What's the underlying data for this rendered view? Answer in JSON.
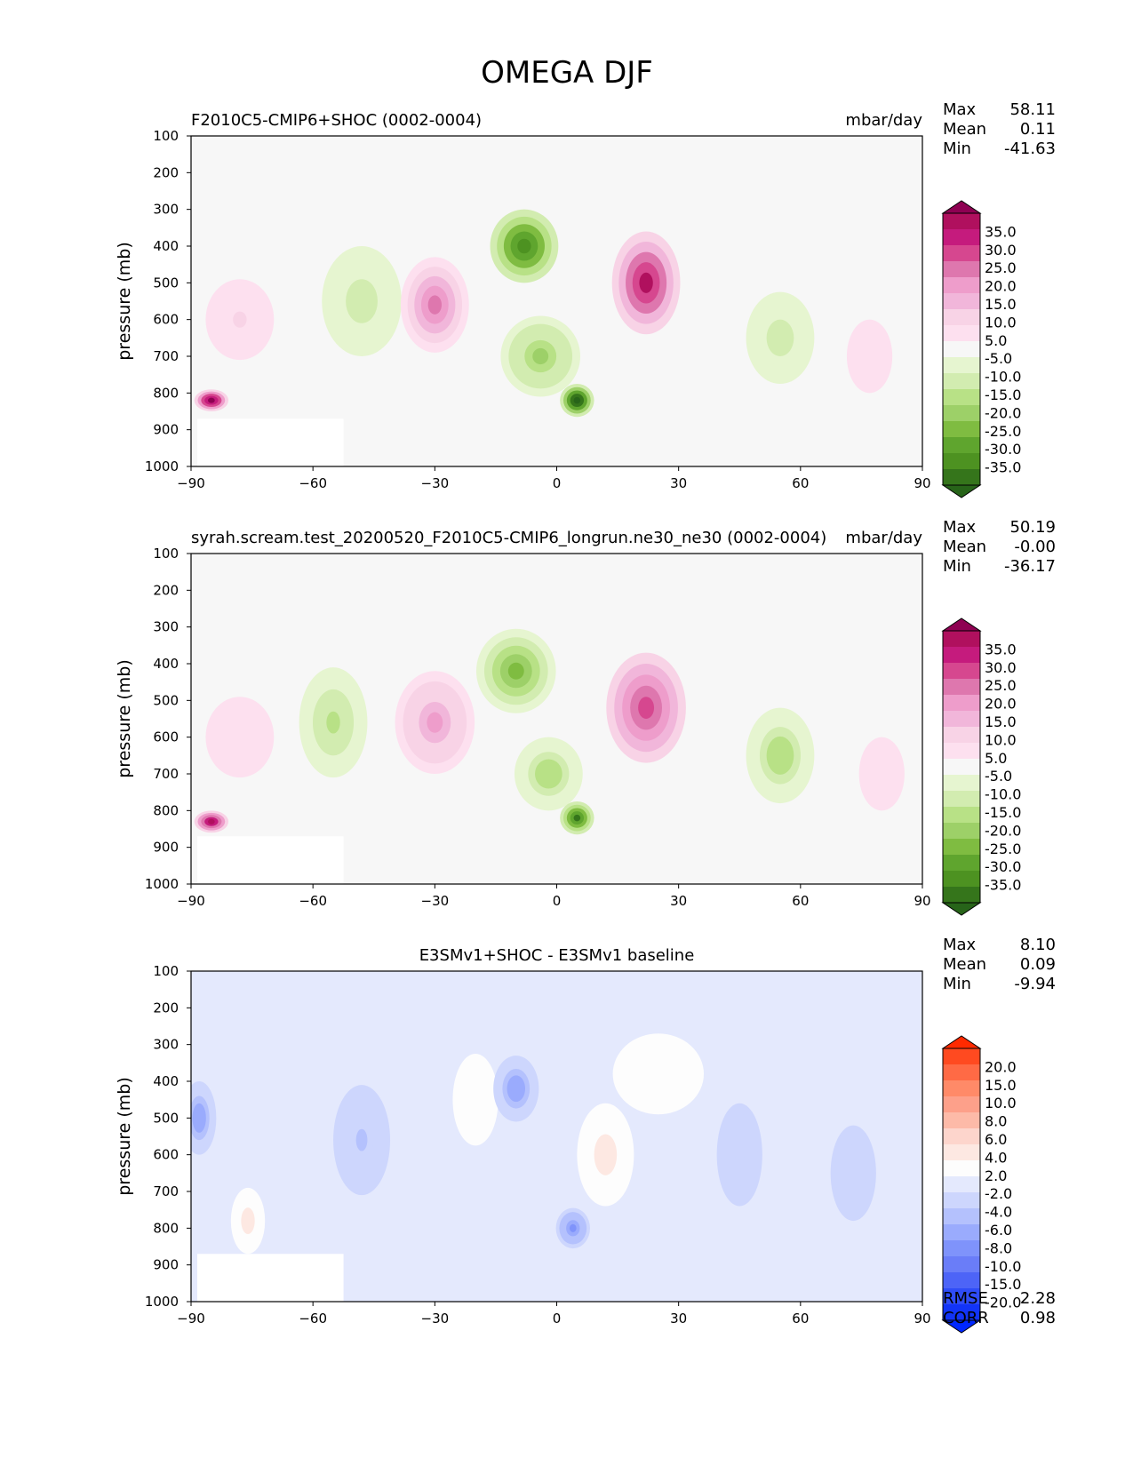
{
  "chart_data": {
    "type": "heatmap",
    "title": "OMEGA DJF",
    "x_ticks": [
      "−90",
      "−60",
      "−30",
      "0",
      "30",
      "60",
      "90"
    ],
    "y_ticks": [
      "100",
      "200",
      "300",
      "400",
      "500",
      "600",
      "700",
      "800",
      "900",
      "1000"
    ],
    "xlim": [
      -90,
      90
    ],
    "ylim": [
      1000,
      100
    ],
    "panels": [
      {
        "left_title": "F2010C5-CMIP6+SHOC (0002-0004)",
        "center_title": "",
        "units": "mbar/day",
        "ylabel": "pressure (mb)",
        "stats": [
          {
            "label": "Max",
            "value": "58.11"
          },
          {
            "label": "Mean",
            "value": "0.11"
          },
          {
            "label": "Min",
            "value": "-41.63"
          }
        ],
        "colorbar": {
          "labels": [
            "35.0",
            "30.0",
            "25.0",
            "20.0",
            "15.0",
            "10.0",
            "5.0",
            "-5.0",
            "-10.0",
            "-15.0",
            "-20.0",
            "-25.0",
            "-30.0",
            "-35.0"
          ],
          "colors": [
            "#8e0152",
            "#b0105e",
            "#c51b7d",
            "#d6478f",
            "#de77ae",
            "#ee9dcb",
            "#f1b6da",
            "#f8d3e6",
            "#fde0ef",
            "#f7f7f7",
            "#e6f5d0",
            "#d2ecb0",
            "#b8e186",
            "#9dd068",
            "#7fbc41",
            "#5fa52e",
            "#4d9221",
            "#35751b",
            "#276419"
          ]
        },
        "features": [
          {
            "lat": -85,
            "p": 820,
            "val": 35,
            "w": 3,
            "h": 60
          },
          {
            "lat": -78,
            "p": 600,
            "val": 6,
            "w": 6,
            "h": 220
          },
          {
            "lat": -48,
            "p": 550,
            "val": -8,
            "w": 7,
            "h": 300
          },
          {
            "lat": -30,
            "p": 560,
            "val": 18,
            "w": 6,
            "h": 260
          },
          {
            "lat": -8,
            "p": 400,
            "val": -28,
            "w": 6,
            "h": 200
          },
          {
            "lat": -4,
            "p": 700,
            "val": -15,
            "w": 7,
            "h": 220
          },
          {
            "lat": 5,
            "p": 820,
            "val": -38,
            "w": 3,
            "h": 90
          },
          {
            "lat": 22,
            "p": 500,
            "val": 30,
            "w": 6,
            "h": 280
          },
          {
            "lat": 55,
            "p": 650,
            "val": -8,
            "w": 6,
            "h": 250
          },
          {
            "lat": 77,
            "p": 700,
            "val": 5,
            "w": 4,
            "h": 200
          }
        ]
      },
      {
        "left_title": "syrah.scream.test_20200520_F2010C5-CMIP6_longrun.ne30_ne30 (0002-0004)",
        "center_title": "",
        "units": "mbar/day",
        "ylabel": "pressure (mb)",
        "stats": [
          {
            "label": "Max",
            "value": "50.19"
          },
          {
            "label": "Mean",
            "value": "-0.00"
          },
          {
            "label": "Min",
            "value": "-36.17"
          }
        ],
        "colorbar": {
          "labels": [
            "35.0",
            "30.0",
            "25.0",
            "20.0",
            "15.0",
            "10.0",
            "5.0",
            "-5.0",
            "-10.0",
            "-15.0",
            "-20.0",
            "-25.0",
            "-30.0",
            "-35.0"
          ],
          "colors": [
            "#8e0152",
            "#b0105e",
            "#c51b7d",
            "#d6478f",
            "#de77ae",
            "#ee9dcb",
            "#f1b6da",
            "#f8d3e6",
            "#fde0ef",
            "#f7f7f7",
            "#e6f5d0",
            "#d2ecb0",
            "#b8e186",
            "#9dd068",
            "#7fbc41",
            "#5fa52e",
            "#4d9221",
            "#35751b",
            "#276419"
          ]
        },
        "features": [
          {
            "lat": -85,
            "p": 830,
            "val": 32,
            "w": 3,
            "h": 60
          },
          {
            "lat": -78,
            "p": 600,
            "val": 5,
            "w": 6,
            "h": 220
          },
          {
            "lat": -55,
            "p": 560,
            "val": -10,
            "w": 6,
            "h": 300
          },
          {
            "lat": -30,
            "p": 560,
            "val": 15,
            "w": 7,
            "h": 280
          },
          {
            "lat": -10,
            "p": 420,
            "val": -20,
            "w": 7,
            "h": 230
          },
          {
            "lat": -2,
            "p": 700,
            "val": -12,
            "w": 6,
            "h": 200
          },
          {
            "lat": 5,
            "p": 820,
            "val": -30,
            "w": 3,
            "h": 90
          },
          {
            "lat": 22,
            "p": 520,
            "val": 25,
            "w": 7,
            "h": 300
          },
          {
            "lat": 55,
            "p": 650,
            "val": -12,
            "w": 6,
            "h": 260
          },
          {
            "lat": 80,
            "p": 700,
            "val": 5,
            "w": 4,
            "h": 200
          }
        ]
      },
      {
        "left_title": "",
        "center_title": "E3SMv1+SHOC - E3SMv1 baseline",
        "units": "",
        "ylabel": "pressure (mb)",
        "stats": [
          {
            "label": "Max",
            "value": "8.10"
          },
          {
            "label": "Mean",
            "value": "0.09"
          },
          {
            "label": "Min",
            "value": "-9.94"
          }
        ],
        "colorbar": {
          "labels": [
            "20.0",
            "15.0",
            "10.0",
            "8.0",
            "6.0",
            "4.0",
            "2.0",
            "-2.0",
            "-4.0",
            "-6.0",
            "-8.0",
            "-10.0",
            "-15.0",
            "-20.0"
          ],
          "colors": [
            "#ff2a00",
            "#ff4a20",
            "#ff6a45",
            "#ff8a68",
            "#fda08a",
            "#fdbaa8",
            "#fdd5cc",
            "#fde8e2",
            "#fdfdfd",
            "#e4e9fd",
            "#cdd6fd",
            "#b4c1fd",
            "#9aabfd",
            "#7f93fb",
            "#6a7df8",
            "#4d64f7",
            "#2f4cf7",
            "#1234f7",
            "#0027ff"
          ]
        },
        "features": [
          {
            "lat": -88,
            "p": 500,
            "val": -7,
            "w": 3,
            "h": 200
          },
          {
            "lat": -76,
            "p": 780,
            "val": 5,
            "w": 3,
            "h": 180
          },
          {
            "lat": -48,
            "p": 560,
            "val": -4,
            "w": 5,
            "h": 300
          },
          {
            "lat": -20,
            "p": 450,
            "val": 2,
            "w": 4,
            "h": 250
          },
          {
            "lat": -10,
            "p": 420,
            "val": -7,
            "w": 4,
            "h": 180
          },
          {
            "lat": 4,
            "p": 800,
            "val": -8,
            "w": 3,
            "h": 110
          },
          {
            "lat": 12,
            "p": 600,
            "val": 5,
            "w": 5,
            "h": 280
          },
          {
            "lat": 25,
            "p": 380,
            "val": 2,
            "w": 8,
            "h": 220
          },
          {
            "lat": 45,
            "p": 600,
            "val": -3,
            "w": 4,
            "h": 280
          },
          {
            "lat": 73,
            "p": 650,
            "val": -3,
            "w": 4,
            "h": 260
          }
        ],
        "rmse": {
          "label": "RMSE",
          "value": "2.28"
        },
        "corr": {
          "label": "CORR",
          "value": "0.98"
        }
      }
    ]
  }
}
